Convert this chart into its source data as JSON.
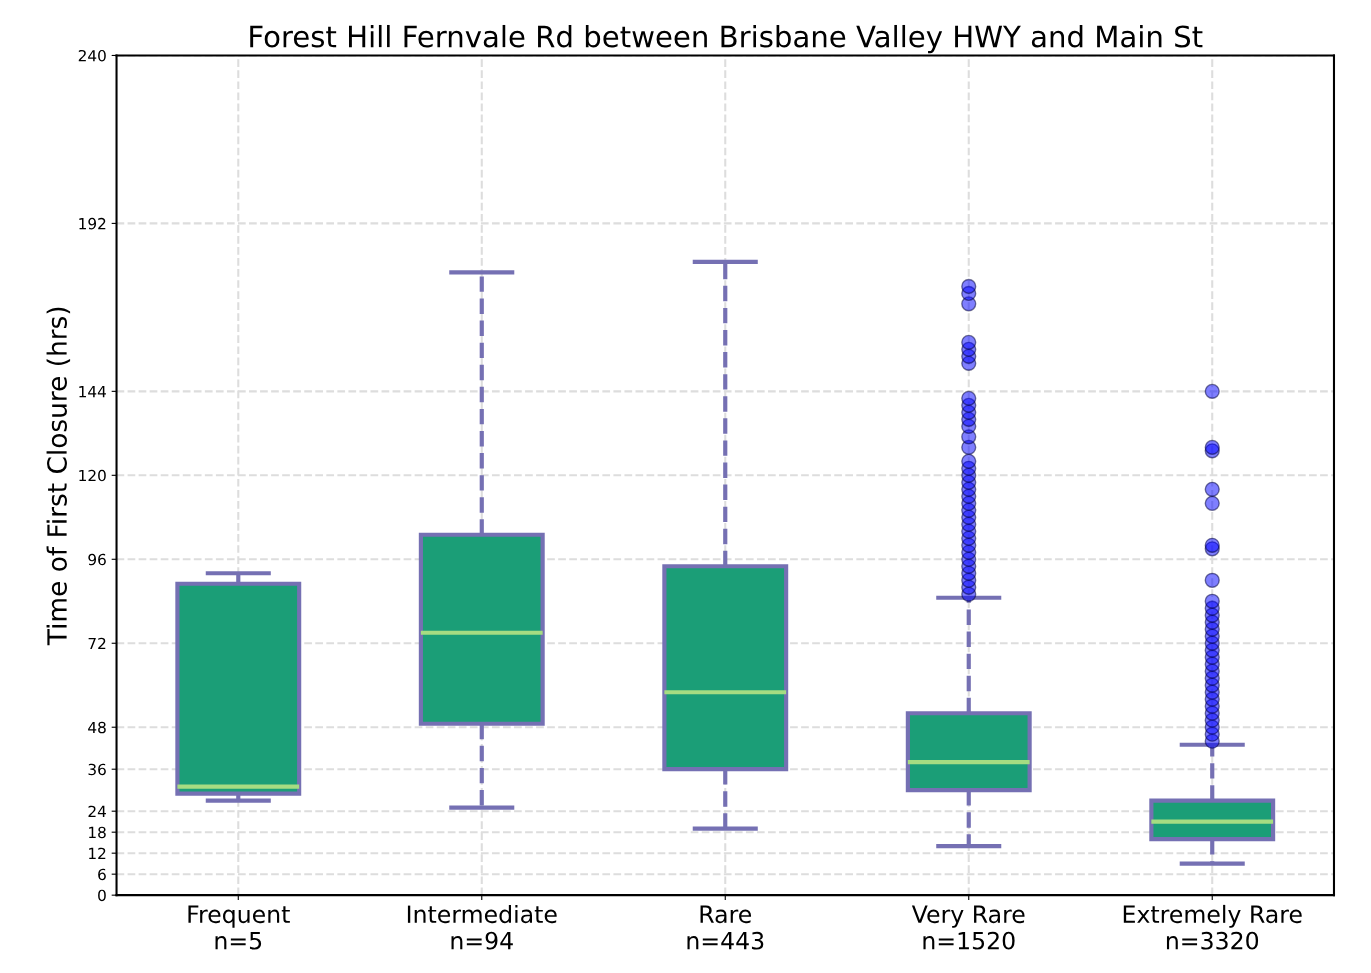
{
  "chart_data": {
    "type": "box",
    "title": "Forest Hill Fernvale Rd between Brisbane Valley HWY and Main St",
    "ylabel": "Time of First Closure (hrs)",
    "categories": [
      "Frequent\nn=5",
      "Intermediate\nn=94",
      "Rare\nn=443",
      "Very Rare\nn=1520",
      "Extremely Rare\nn=3320"
    ],
    "series": [
      {
        "color": "#1b9e77",
        "boxes": [
          {
            "low": 27,
            "q1": 29,
            "median": 31,
            "q3": 89,
            "high": 92
          },
          {
            "low": 25,
            "q1": 49,
            "median": 75,
            "q3": 103,
            "high": 178
          },
          {
            "low": 19,
            "q1": 36,
            "median": 58,
            "q3": 94,
            "high": 181
          },
          {
            "low": 14,
            "q1": 30,
            "median": 38,
            "q3": 52,
            "high": 85,
            "outliers": [
              86,
              88,
              90,
              92,
              94,
              96,
              98,
              100,
              102,
              104,
              106,
              108,
              110,
              112,
              114,
              116,
              118,
              120,
              122,
              124,
              128,
              131,
              134,
              136,
              138,
              140,
              142,
              152,
              154,
              156,
              158,
              169,
              172,
              174
            ]
          },
          {
            "low": 9,
            "q1": 16,
            "median": 21,
            "q3": 27,
            "high": 43,
            "outliers": [
              44,
              46,
              48,
              50,
              52,
              54,
              56,
              58,
              60,
              62,
              64,
              66,
              68,
              70,
              72,
              74,
              76,
              78,
              80,
              82,
              84,
              90,
              99,
              100,
              112,
              116,
              127,
              128,
              144
            ]
          }
        ]
      }
    ],
    "ylim": [
      0,
      240
    ],
    "yticks": [
      0,
      6,
      12,
      18,
      24,
      36,
      48,
      72,
      96,
      120,
      144,
      192,
      240
    ],
    "grid": true,
    "line_style": "dashed"
  }
}
